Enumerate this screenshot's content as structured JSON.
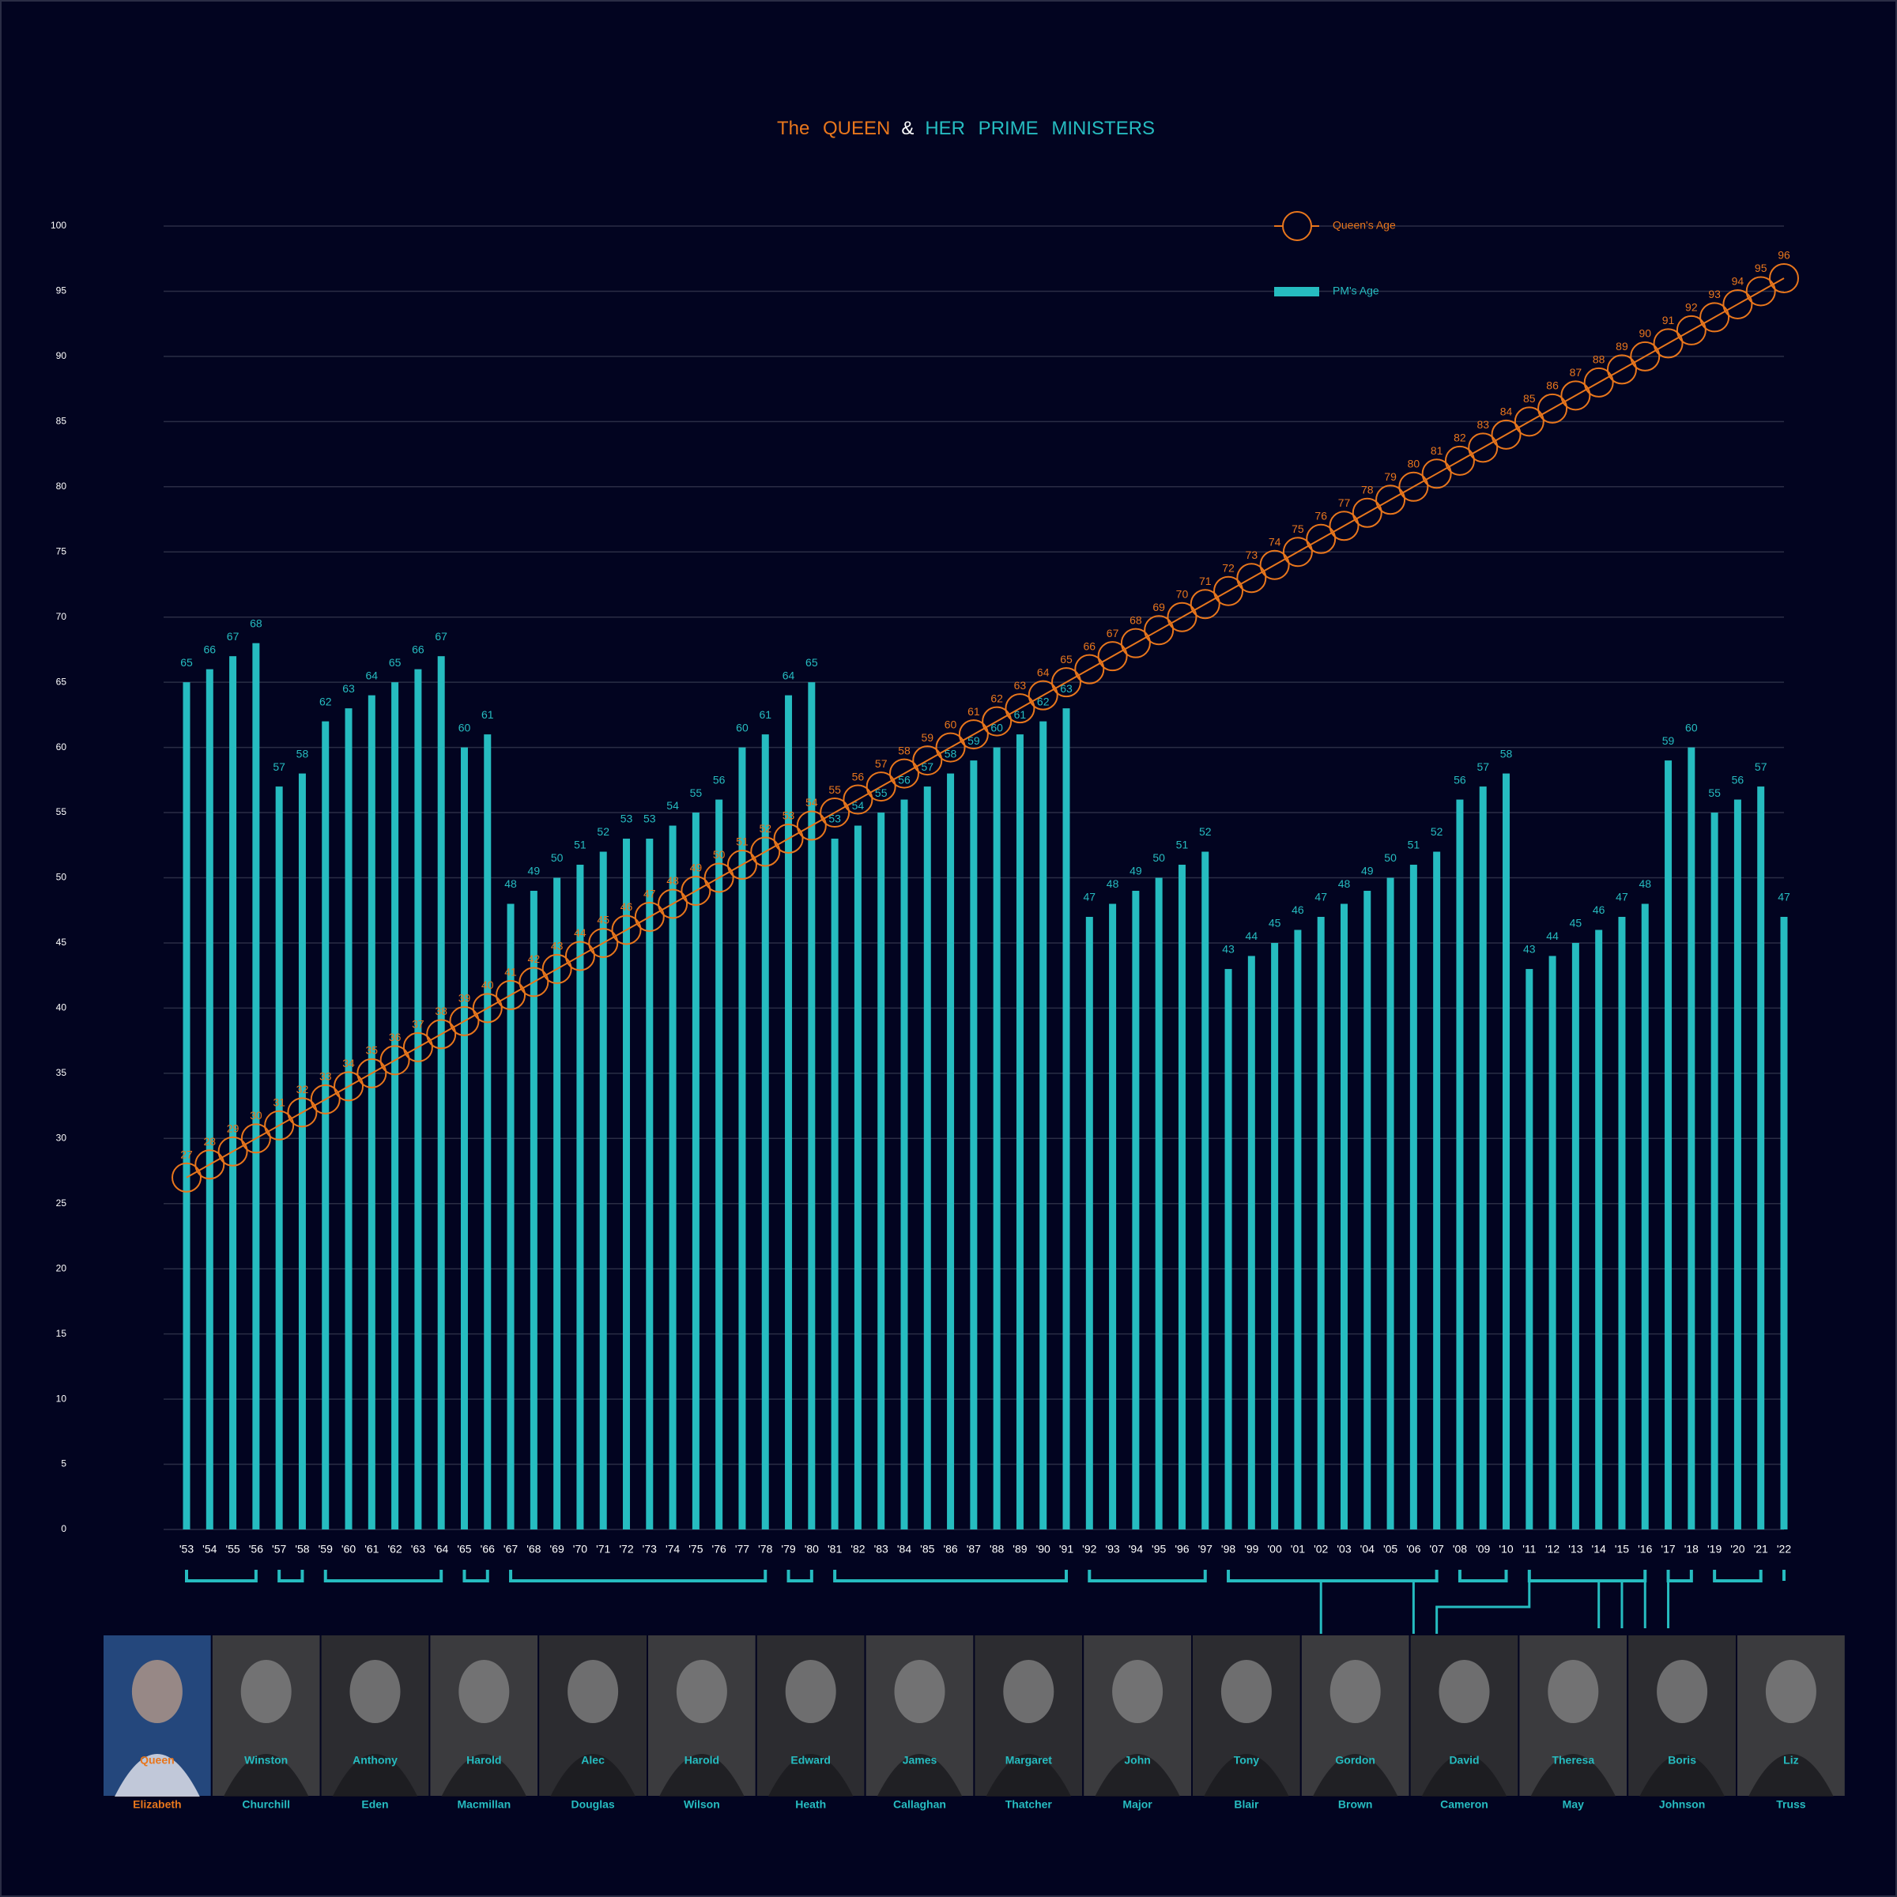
{
  "chart_data": {
    "type": "bar",
    "title": [
      {
        "text": "The QUEEN",
        "color": "#e8761c"
      },
      {
        "text": "&",
        "color": "#ffffff"
      },
      {
        "text": "HER PRIME MINISTERS",
        "color": "#26bcc0"
      }
    ],
    "categories": [
      "'53",
      "'54",
      "'55",
      "'56",
      "'57",
      "'58",
      "'59",
      "'60",
      "'61",
      "'62",
      "'63",
      "'64",
      "'65",
      "'66",
      "'67",
      "'68",
      "'69",
      "'70",
      "'71",
      "'72",
      "'73",
      "'74",
      "'75",
      "'76",
      "'77",
      "'78",
      "'79",
      "'80",
      "'81",
      "'82",
      "'83",
      "'84",
      "'85",
      "'86",
      "'87",
      "'88",
      "'89",
      "'90",
      "'91",
      "'92",
      "'93",
      "'94",
      "'95",
      "'96",
      "'97",
      "'98",
      "'99",
      "'00",
      "'01",
      "'02",
      "'03",
      "'04",
      "'05",
      "'06",
      "'07",
      "'08",
      "'09",
      "'10",
      "'11",
      "'12",
      "'13",
      "'14",
      "'15",
      "'16",
      "'17",
      "'18",
      "'19",
      "'20",
      "'21",
      "'22"
    ],
    "series": [
      {
        "name": "Queen's Age",
        "type": "line",
        "color": "#e8761c",
        "values": [
          27,
          28,
          29,
          30,
          31,
          32,
          33,
          34,
          35,
          36,
          37,
          38,
          39,
          40,
          41,
          42,
          43,
          44,
          45,
          46,
          47,
          48,
          49,
          50,
          51,
          52,
          53,
          54,
          55,
          56,
          57,
          58,
          59,
          60,
          61,
          62,
          63,
          64,
          65,
          66,
          67,
          68,
          69,
          70,
          71,
          72,
          73,
          74,
          75,
          76,
          77,
          78,
          79,
          80,
          81,
          82,
          83,
          84,
          85,
          86,
          87,
          88,
          89,
          90,
          91,
          92,
          93,
          94,
          95,
          96
        ]
      },
      {
        "name": "PM's Age",
        "type": "bar",
        "color": "#26bcc0",
        "values": [
          65,
          66,
          67,
          68,
          57,
          58,
          62,
          63,
          64,
          65,
          66,
          67,
          60,
          61,
          48,
          49,
          50,
          51,
          52,
          53,
          53,
          54,
          55,
          56,
          60,
          61,
          64,
          65,
          53,
          54,
          55,
          56,
          57,
          58,
          59,
          60,
          61,
          62,
          63,
          47,
          48,
          49,
          50,
          51,
          52,
          43,
          44,
          45,
          46,
          47,
          48,
          49,
          50,
          51,
          52,
          56,
          57,
          58,
          43,
          44,
          45,
          46,
          47,
          48,
          59,
          60,
          55,
          56,
          57,
          47
        ]
      }
    ],
    "ylim": [
      0,
      100
    ],
    "yticks": [
      0,
      5,
      10,
      15,
      20,
      25,
      30,
      35,
      40,
      45,
      50,
      55,
      60,
      65,
      70,
      75,
      80,
      85,
      90,
      95,
      100
    ],
    "grid": true,
    "legend": "top-right",
    "people": [
      {
        "first": "Queen",
        "last": "Elizabeth",
        "color": "#e8761c"
      },
      {
        "first": "Winston",
        "last": "Churchill",
        "color": "#26bcc0"
      },
      {
        "first": "Anthony",
        "last": "Eden",
        "color": "#26bcc0"
      },
      {
        "first": "Harold",
        "last": "Macmillan",
        "color": "#26bcc0"
      },
      {
        "first": "Alec",
        "last": "Douglas",
        "color": "#26bcc0"
      },
      {
        "first": "Harold",
        "last": "Wilson",
        "color": "#26bcc0"
      },
      {
        "first": "Edward",
        "last": "Heath",
        "color": "#26bcc0"
      },
      {
        "first": "James",
        "last": "Callaghan",
        "color": "#26bcc0"
      },
      {
        "first": "Margaret",
        "last": "Thatcher",
        "color": "#26bcc0"
      },
      {
        "first": "John",
        "last": "Major",
        "color": "#26bcc0"
      },
      {
        "first": "Tony",
        "last": "Blair",
        "color": "#26bcc0"
      },
      {
        "first": "Gordon",
        "last": "Brown",
        "color": "#26bcc0"
      },
      {
        "first": "David",
        "last": "Cameron",
        "color": "#26bcc0"
      },
      {
        "first": "Theresa",
        "last": "May",
        "color": "#26bcc0"
      },
      {
        "first": "Boris",
        "last": "Johnson",
        "color": "#26bcc0"
      },
      {
        "first": "Liz",
        "last": "Truss",
        "color": "#26bcc0"
      }
    ]
  }
}
